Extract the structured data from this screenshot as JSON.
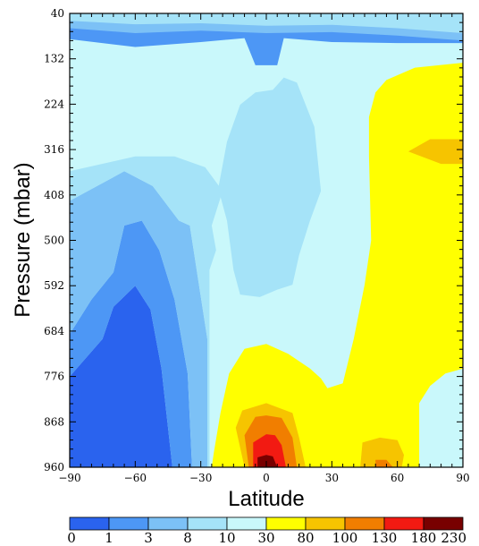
{
  "chart_data": {
    "type": "contour",
    "xlabel": "Latitude",
    "ylabel": "Pressure (mbar)",
    "x_ticks": [
      "−90",
      "−60",
      "−30",
      "0",
      "30",
      "60",
      "90"
    ],
    "y_ticks": [
      "40",
      "132",
      "224",
      "316",
      "408",
      "500",
      "592",
      "684",
      "776",
      "868",
      "960"
    ],
    "xlim": [
      -90,
      90
    ],
    "ylim": [
      960,
      40
    ],
    "y_inverted": true,
    "colorbar": {
      "position": "bottom",
      "levels": [
        "0",
        "1",
        "3",
        "8",
        "10",
        "30",
        "80",
        "100",
        "130",
        "180",
        "230"
      ],
      "colors": [
        "#2a63ee",
        "#4d97f5",
        "#7cc1f6",
        "#a5e3f8",
        "#c9f8fb",
        "#ffff00",
        "#f6c400",
        "#f17e00",
        "#f21a12",
        "#780000"
      ]
    },
    "regions": [
      {
        "level": 0,
        "points": [
          [
            -90,
            960
          ],
          [
            -90,
            776
          ],
          [
            -75,
            700
          ],
          [
            -70,
            635
          ],
          [
            -60,
            592
          ],
          [
            -53,
            640
          ],
          [
            -48,
            760
          ],
          [
            -43,
            960
          ]
        ]
      },
      {
        "level": 1,
        "points": [
          [
            -90,
            760
          ],
          [
            -90,
            690
          ],
          [
            -80,
            620
          ],
          [
            -70,
            565
          ],
          [
            -65,
            470
          ],
          [
            -57,
            460
          ],
          [
            -49,
            520
          ],
          [
            -42,
            620
          ],
          [
            -36,
            770
          ],
          [
            -34,
            960
          ],
          [
            -43,
            960
          ],
          [
            -48,
            760
          ],
          [
            -53,
            640
          ],
          [
            -60,
            592
          ],
          [
            -70,
            635
          ],
          [
            -75,
            700
          ],
          [
            -90,
            776
          ]
        ]
      },
      {
        "level": 1,
        "points": [
          [
            -90,
            40
          ],
          [
            -90,
            92
          ],
          [
            -60,
            108
          ],
          [
            -30,
            98
          ],
          [
            -10,
            90
          ],
          [
            -5,
            145
          ],
          [
            5,
            145
          ],
          [
            8,
            90
          ],
          [
            30,
            98
          ],
          [
            60,
            100
          ],
          [
            90,
            100
          ],
          [
            90,
            40
          ]
        ]
      },
      {
        "level": 1,
        "points": [
          [
            -8,
            430
          ],
          [
            -3,
            400
          ],
          [
            5,
            410
          ],
          [
            10,
            440
          ],
          [
            5,
            455
          ],
          [
            -3,
            470
          ],
          [
            -10,
            445
          ]
        ]
      },
      {
        "level": 2,
        "points": [
          [
            -90,
            690
          ],
          [
            -90,
            420
          ],
          [
            -65,
            360
          ],
          [
            -52,
            390
          ],
          [
            -40,
            460
          ],
          [
            -35,
            470
          ],
          [
            -27,
            700
          ],
          [
            -27,
            960
          ],
          [
            -34,
            960
          ],
          [
            -36,
            770
          ],
          [
            -42,
            620
          ],
          [
            -49,
            520
          ],
          [
            -57,
            460
          ],
          [
            -65,
            470
          ],
          [
            -70,
            565
          ],
          [
            -80,
            620
          ]
        ]
      },
      {
        "level": 2,
        "points": [
          [
            -90,
            40
          ],
          [
            -90,
            70
          ],
          [
            -60,
            80
          ],
          [
            -30,
            75
          ],
          [
            0,
            80
          ],
          [
            30,
            78
          ],
          [
            60,
            85
          ],
          [
            90,
            95
          ],
          [
            90,
            40
          ]
        ]
      },
      {
        "level": 2,
        "points": [
          [
            -14,
            480
          ],
          [
            -20,
            380
          ],
          [
            -12,
            260
          ],
          [
            -5,
            250
          ],
          [
            5,
            225
          ],
          [
            10,
            200
          ],
          [
            16,
            235
          ],
          [
            18,
            320
          ],
          [
            19,
            430
          ],
          [
            13,
            510
          ],
          [
            5,
            560
          ],
          [
            -3,
            610
          ],
          [
            -8,
            595
          ],
          [
            -12,
            560
          ]
        ]
      },
      {
        "level": 3,
        "points": [
          [
            -90,
            420
          ],
          [
            -90,
            360
          ],
          [
            -60,
            330
          ],
          [
            -42,
            330
          ],
          [
            -28,
            352
          ],
          [
            -20,
            400
          ],
          [
            -25,
            470
          ],
          [
            -23,
            520
          ],
          [
            -26,
            560
          ],
          [
            -26,
            960
          ],
          [
            -27,
            960
          ],
          [
            -27,
            700
          ],
          [
            -35,
            470
          ],
          [
            -40,
            460
          ],
          [
            -52,
            390
          ],
          [
            -65,
            360
          ]
        ]
      },
      {
        "level": 3,
        "points": [
          [
            -90,
            40
          ],
          [
            -90,
            55
          ],
          [
            -60,
            62
          ],
          [
            -30,
            60
          ],
          [
            0,
            65
          ],
          [
            30,
            63
          ],
          [
            60,
            70
          ],
          [
            90,
            80
          ],
          [
            90,
            40
          ]
        ]
      },
      {
        "level": 3,
        "points": [
          [
            -15,
            560
          ],
          [
            -18,
            460
          ],
          [
            -22,
            395
          ],
          [
            -18,
            300
          ],
          [
            -12,
            225
          ],
          [
            -5,
            200
          ],
          [
            3,
            195
          ],
          [
            8,
            170
          ],
          [
            14,
            180
          ],
          [
            22,
            270
          ],
          [
            25,
            400
          ],
          [
            20,
            460
          ],
          [
            15,
            530
          ],
          [
            12,
            590
          ],
          [
            5,
            600
          ],
          [
            -3,
            615
          ],
          [
            -12,
            610
          ]
        ]
      },
      {
        "level": 5,
        "points": [
          [
            90,
            140
          ],
          [
            68,
            150
          ],
          [
            55,
            175
          ],
          [
            50,
            200
          ],
          [
            47,
            250
          ],
          [
            47,
            330
          ],
          [
            48,
            500
          ],
          [
            45,
            590
          ],
          [
            40,
            700
          ],
          [
            35,
            790
          ],
          [
            28,
            800
          ],
          [
            25,
            780
          ],
          [
            20,
            760
          ],
          [
            10,
            730
          ],
          [
            0,
            710
          ],
          [
            -10,
            720
          ],
          [
            -17,
            770
          ],
          [
            -21,
            850
          ],
          [
            -24,
            930
          ],
          [
            -25,
            960
          ],
          [
            90,
            960
          ]
        ]
      },
      {
        "level": 6,
        "points": [
          [
            65,
            320
          ],
          [
            75,
            295
          ],
          [
            90,
            295
          ],
          [
            90,
            345
          ],
          [
            80,
            345
          ]
        ]
      },
      {
        "level": 6,
        "points": [
          [
            -10,
            960
          ],
          [
            -14,
            880
          ],
          [
            -11,
            845
          ],
          [
            0,
            830
          ],
          [
            12,
            850
          ],
          [
            15,
            900
          ],
          [
            18,
            960
          ]
        ]
      },
      {
        "level": 6,
        "points": [
          [
            43,
            960
          ],
          [
            44,
            910
          ],
          [
            52,
            900
          ],
          [
            60,
            905
          ],
          [
            63,
            935
          ],
          [
            62,
            960
          ]
        ]
      },
      {
        "level": 7,
        "points": [
          [
            -8,
            960
          ],
          [
            -10,
            895
          ],
          [
            -5,
            858
          ],
          [
            0,
            855
          ],
          [
            7,
            860
          ],
          [
            12,
            900
          ],
          [
            14,
            960
          ]
        ]
      },
      {
        "level": 7,
        "points": [
          [
            50,
            960
          ],
          [
            50,
            945
          ],
          [
            55,
            945
          ],
          [
            58,
            960
          ]
        ]
      },
      {
        "level": 8,
        "points": [
          [
            -6,
            960
          ],
          [
            -6,
            910
          ],
          [
            0,
            893
          ],
          [
            4,
            895
          ],
          [
            7,
            915
          ],
          [
            9,
            960
          ]
        ]
      },
      {
        "level": 9,
        "points": [
          [
            -4,
            960
          ],
          [
            -4,
            940
          ],
          [
            0,
            935
          ],
          [
            3,
            938
          ],
          [
            5,
            960
          ]
        ]
      },
      {
        "level": 4,
        "points": [
          [
            70,
            960
          ],
          [
            70,
            830
          ],
          [
            75,
            795
          ],
          [
            82,
            770
          ],
          [
            90,
            760
          ],
          [
            90,
            960
          ]
        ]
      }
    ]
  }
}
